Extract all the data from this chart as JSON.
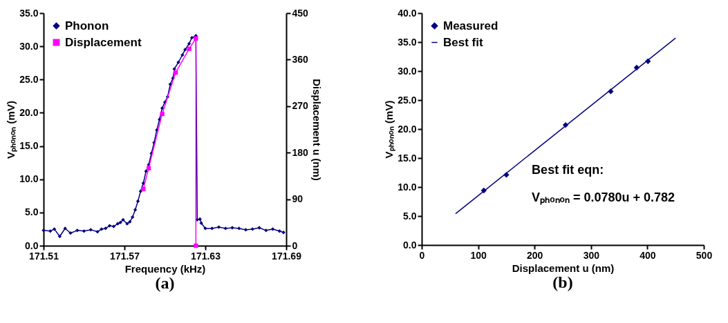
{
  "chart_data": [
    {
      "type": "line",
      "title": "(a)",
      "xlabel": "Frequency (kHz)",
      "ylabel": "Vₚₕₒₙₒₙ (mV)",
      "y2label": "Displacement u (nm)",
      "xlim": [
        171.51,
        171.69
      ],
      "xticks": [
        171.51,
        171.57,
        171.63,
        171.69
      ],
      "ylim": [
        0,
        35
      ],
      "yticks": [
        {
          "value": 0,
          "label": "0.0"
        },
        {
          "value": 5,
          "label": "5.0"
        },
        {
          "value": 10,
          "label": "10.0"
        },
        {
          "value": 15,
          "label": "15.0"
        },
        {
          "value": 20,
          "label": "20.0"
        },
        {
          "value": 25,
          "label": "25.0"
        },
        {
          "value": 30,
          "label": "30.0"
        },
        {
          "value": 35,
          "label": "35.0"
        }
      ],
      "y2lim": [
        0,
        450
      ],
      "y2ticks": [
        0,
        90,
        180,
        270,
        360,
        450
      ],
      "grid": false,
      "legend": "top left",
      "series": [
        {
          "name": "Phonon",
          "color": "#000080",
          "marker": "diamond",
          "x": [
            171.51,
            171.515,
            171.518,
            171.522,
            171.526,
            171.53,
            171.535,
            171.54,
            171.545,
            171.55,
            171.553,
            171.556,
            171.559,
            171.562,
            171.565,
            171.567,
            171.569,
            171.572,
            171.574,
            171.576,
            171.578,
            171.58,
            171.582,
            171.584,
            171.586,
            171.588,
            171.59,
            171.592,
            171.594,
            171.596,
            171.598,
            171.6,
            171.602,
            171.604,
            171.606,
            171.607,
            171.61,
            171.613,
            171.615,
            171.618,
            171.62,
            171.623,
            171.624,
            171.626,
            171.627,
            171.63,
            171.635,
            171.64,
            171.645,
            171.65,
            171.655,
            171.66,
            171.665,
            171.67,
            171.675,
            171.68,
            171.685,
            171.688
          ],
          "values": [
            2.3,
            2.2,
            2.5,
            1.4,
            2.6,
            1.9,
            2.3,
            2.2,
            2.4,
            2.1,
            2.5,
            2.6,
            3.0,
            2.9,
            3.3,
            3.5,
            3.9,
            3.3,
            3.6,
            4.3,
            5.4,
            6.7,
            8.2,
            9.4,
            11.2,
            12.2,
            13.9,
            15.5,
            17.4,
            19.0,
            20.7,
            21.6,
            22.4,
            24.3,
            25.2,
            26.6,
            27.6,
            28.7,
            29.5,
            30.4,
            31.3,
            31.6,
            3.9,
            4.0,
            3.4,
            2.6,
            2.6,
            2.8,
            2.6,
            2.7,
            2.6,
            2.4,
            2.5,
            2.7,
            2.3,
            2.5,
            2.2,
            2.0
          ]
        },
        {
          "name": "Displacement",
          "color": "#ff00ff",
          "marker": "square",
          "axis": "y2",
          "x": [
            171.584,
            171.588,
            171.598,
            171.608,
            171.618,
            171.623,
            171.623
          ],
          "values": [
            110,
            150,
            255,
            335,
            381,
            401,
            0
          ]
        }
      ]
    },
    {
      "type": "scatter",
      "title": "(b)",
      "xlabel": "Displacement u (nm)",
      "ylabel": "Vₚₕₒₙₒₙ (mV)",
      "xlim": [
        0,
        500
      ],
      "xticks": [
        0,
        100,
        200,
        300,
        400,
        500
      ],
      "ylim": [
        0,
        40
      ],
      "yticks": [
        {
          "value": 0,
          "label": "0.0"
        },
        {
          "value": 5,
          "label": "5.0"
        },
        {
          "value": 10,
          "label": "10.0"
        },
        {
          "value": 15,
          "label": "15.0"
        },
        {
          "value": 20,
          "label": "20.0"
        },
        {
          "value": 25,
          "label": "25.0"
        },
        {
          "value": 30,
          "label": "30.0"
        },
        {
          "value": 35,
          "label": "35.0"
        },
        {
          "value": 40,
          "label": "40.0"
        }
      ],
      "grid": false,
      "legend": "top left",
      "annotations": [
        "Best fit eqn:",
        "Vₚₕₒₙₒₙ = 0.0780u + 0.782"
      ],
      "series": [
        {
          "name": "Measured",
          "color": "#000080",
          "marker": "diamond",
          "x": [
            110,
            150,
            255,
            335,
            381,
            401
          ],
          "values": [
            9.4,
            12.1,
            20.7,
            26.5,
            30.6,
            31.7
          ]
        },
        {
          "name": "Best fit",
          "color": "#000080",
          "type": "line",
          "marker": "none",
          "x": [
            60,
            450
          ],
          "values": [
            5.4,
            35.7
          ]
        }
      ]
    }
  ]
}
